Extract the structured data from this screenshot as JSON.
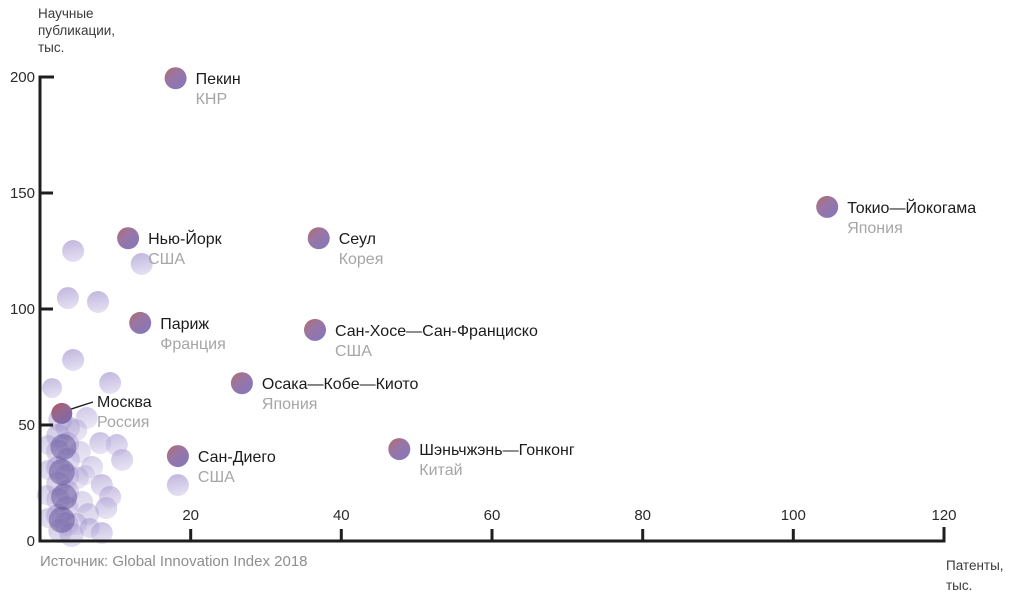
{
  "labels": {
    "ylabel_line1": "Научные",
    "ylabel_line2": "публикации,",
    "ylabel_line3": "тыс.",
    "xlabel_line1": "Патенты,",
    "xlabel_line2": "тыс.",
    "source": "Источник: Global Innovation Index 2018"
  },
  "colors": {
    "axis": "#1e1e1e",
    "city_text": "#1c1c1c",
    "country_text": "#a6a6a8",
    "tick_text": "#2b2b2b",
    "bubble_red": "#b26b64",
    "bubble_mid_blend": "#9a76a4",
    "bubble_purple": "#8577b9",
    "moscow_red": "#b2585e",
    "moscow_purple": "#7e69ac",
    "bubble_light_top": "#b2a5d6",
    "bubble_light_bottom": "#ded8ef",
    "bubble_mid_top": "#9386c3",
    "bubble_mid_bottom": "#c0b6e0",
    "bubble_dark_core": "#5f4f96"
  },
  "chart_data": {
    "type": "scatter",
    "title": "",
    "xlabel": "Патенты, тыс.",
    "ylabel": "Научные публикации, тыс.",
    "source": "Источник: Global Innovation Index 2018",
    "xlim": [
      0,
      120
    ],
    "ylim": [
      0,
      200
    ],
    "x_ticks": [
      20,
      40,
      60,
      80,
      100,
      120
    ],
    "y_ticks": [
      0,
      50,
      100,
      150,
      200
    ],
    "grid": false,
    "legend": "none",
    "points": [
      {
        "city": "Пекин",
        "country": "КНР",
        "x": 18,
        "y": 199.5
      },
      {
        "city": "Токио—Йокогама",
        "country": "Япония",
        "x": 104.5,
        "y": 144
      },
      {
        "city": "Нью-Йорк",
        "country": "США",
        "x": 11.7,
        "y": 130.5
      },
      {
        "city": "Сеул",
        "country": "Корея",
        "x": 37,
        "y": 130.5
      },
      {
        "city": "Париж",
        "country": "Франция",
        "x": 13.3,
        "y": 94
      },
      {
        "city": "Сан-Хосе—Сан-Франциско",
        "country": "США",
        "x": 36.5,
        "y": 91
      },
      {
        "city": "Осака—Кобе—Киото",
        "country": "Япония",
        "x": 26.8,
        "y": 68
      },
      {
        "city": "Москва",
        "country": "Россия",
        "x": 2.9,
        "y": 55,
        "grad": "moscow",
        "callout": true,
        "label_x": 97,
        "label_y": 407,
        "r": 10.5
      },
      {
        "city": "Сан-Диего",
        "country": "США",
        "x": 18.3,
        "y": 36.6
      },
      {
        "city": "Шэньчжэнь—Гонконг",
        "country": "Китай",
        "x": 47.7,
        "y": 39.6
      }
    ],
    "background_points": [
      {
        "x": 4.4,
        "y": 125.0,
        "r": 11,
        "o": 0.8,
        "k": 0
      },
      {
        "x": 13.5,
        "y": 119.4,
        "r": 11,
        "o": 0.8,
        "k": 0
      },
      {
        "x": 3.7,
        "y": 104.7,
        "r": 11,
        "o": 0.8,
        "k": 0
      },
      {
        "x": 7.7,
        "y": 103.0,
        "r": 11,
        "o": 0.8,
        "k": 0
      },
      {
        "x": 4.4,
        "y": 78.0,
        "r": 11,
        "o": 0.8,
        "k": 0
      },
      {
        "x": 1.6,
        "y": 65.9,
        "r": 10,
        "o": 0.75,
        "k": 0
      },
      {
        "x": 9.3,
        "y": 68.1,
        "r": 11,
        "o": 0.8,
        "k": 0
      },
      {
        "x": 6.2,
        "y": 53.0,
        "r": 11,
        "o": 0.6,
        "k": 0
      },
      {
        "x": 8.0,
        "y": 42.2,
        "r": 11,
        "o": 0.7,
        "k": 0
      },
      {
        "x": 10.2,
        "y": 41.4,
        "r": 11,
        "o": 0.7,
        "k": 0
      },
      {
        "x": 10.9,
        "y": 34.9,
        "r": 11,
        "o": 0.7,
        "k": 0
      },
      {
        "x": 6.9,
        "y": 31.9,
        "r": 11,
        "o": 0.55,
        "k": 0
      },
      {
        "x": 8.2,
        "y": 24.1,
        "r": 11,
        "o": 0.7,
        "k": 0
      },
      {
        "x": 9.3,
        "y": 19.0,
        "r": 11,
        "o": 0.7,
        "k": 0
      },
      {
        "x": 8.8,
        "y": 14.2,
        "r": 11,
        "o": 0.7,
        "k": 0
      },
      {
        "x": 8.2,
        "y": 3.4,
        "r": 11,
        "o": 0.7,
        "k": 0
      },
      {
        "x": 18.3,
        "y": 24.1,
        "r": 11,
        "o": 0.8,
        "k": 0
      },
      {
        "x": 6.0,
        "y": 28.4,
        "r": 10,
        "o": 0.5,
        "k": 0
      },
      {
        "x": 2.7,
        "y": 52.2,
        "r": 12,
        "o": 0.45,
        "k": 1
      },
      {
        "x": 3.7,
        "y": 48.7,
        "r": 12,
        "o": 0.45,
        "k": 1
      },
      {
        "x": 2.4,
        "y": 45.3,
        "r": 12,
        "o": 0.45,
        "k": 1
      },
      {
        "x": 3.6,
        "y": 41.8,
        "r": 12,
        "o": 0.45,
        "k": 1
      },
      {
        "x": 2.4,
        "y": 38.4,
        "r": 12,
        "o": 0.45,
        "k": 1
      },
      {
        "x": 3.7,
        "y": 34.9,
        "r": 12,
        "o": 0.45,
        "k": 1
      },
      {
        "x": 2.4,
        "y": 31.5,
        "r": 12,
        "o": 0.45,
        "k": 1
      },
      {
        "x": 3.6,
        "y": 28.0,
        "r": 12,
        "o": 0.45,
        "k": 1
      },
      {
        "x": 2.4,
        "y": 24.6,
        "r": 12,
        "o": 0.45,
        "k": 1
      },
      {
        "x": 3.6,
        "y": 21.1,
        "r": 12,
        "o": 0.45,
        "k": 1
      },
      {
        "x": 2.4,
        "y": 17.7,
        "r": 12,
        "o": 0.45,
        "k": 1
      },
      {
        "x": 3.5,
        "y": 14.2,
        "r": 12,
        "o": 0.45,
        "k": 1
      },
      {
        "x": 2.4,
        "y": 10.8,
        "r": 12,
        "o": 0.45,
        "k": 1
      },
      {
        "x": 3.5,
        "y": 7.3,
        "r": 12,
        "o": 0.45,
        "k": 1
      },
      {
        "x": 2.7,
        "y": 4.3,
        "r": 12,
        "o": 0.45,
        "k": 1
      },
      {
        "x": 4.2,
        "y": 2.6,
        "r": 12,
        "o": 0.45,
        "k": 1
      },
      {
        "x": 4.8,
        "y": 47.8,
        "r": 11,
        "o": 0.35,
        "k": 1
      },
      {
        "x": 5.3,
        "y": 38.4,
        "r": 11,
        "o": 0.35,
        "k": 1
      },
      {
        "x": 5.0,
        "y": 27.2,
        "r": 11,
        "o": 0.35,
        "k": 1
      },
      {
        "x": 5.6,
        "y": 16.8,
        "r": 11,
        "o": 0.35,
        "k": 1
      },
      {
        "x": 6.4,
        "y": 11.6,
        "r": 11,
        "o": 0.4,
        "k": 1
      },
      {
        "x": 4.8,
        "y": 7.3,
        "r": 11,
        "o": 0.4,
        "k": 1
      },
      {
        "x": 6.6,
        "y": 5.6,
        "r": 10,
        "o": 0.45,
        "k": 1
      },
      {
        "x": 1.1,
        "y": 41.4,
        "r": 10,
        "o": 0.4,
        "k": 1
      },
      {
        "x": 1.1,
        "y": 30.6,
        "r": 10,
        "o": 0.4,
        "k": 1
      },
      {
        "x": 0.9,
        "y": 19.8,
        "r": 10,
        "o": 0.4,
        "k": 1
      },
      {
        "x": 1.1,
        "y": 9.9,
        "r": 10,
        "o": 0.4,
        "k": 1
      },
      {
        "x": 3.1,
        "y": 40.5,
        "r": 13,
        "o": 0.5,
        "k": 2
      },
      {
        "x": 2.9,
        "y": 29.7,
        "r": 13,
        "o": 0.5,
        "k": 2
      },
      {
        "x": 3.2,
        "y": 19.0,
        "r": 13,
        "o": 0.5,
        "k": 2
      },
      {
        "x": 2.9,
        "y": 9.1,
        "r": 13,
        "o": 0.5,
        "k": 2
      }
    ]
  }
}
